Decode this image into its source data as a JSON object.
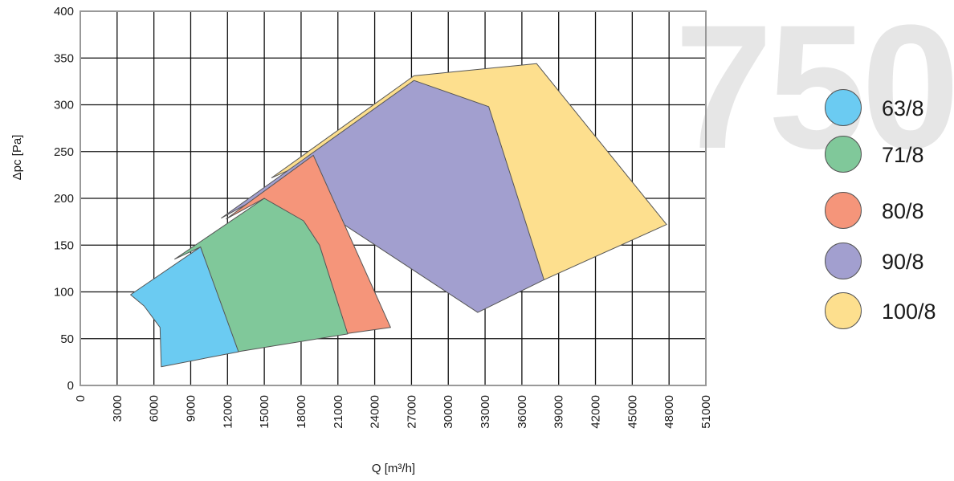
{
  "chart_data": {
    "type": "area",
    "watermark": "750",
    "xlabel": "Q [m³/h]",
    "ylabel": "Δpc [Pa]",
    "xlim": [
      0,
      51000
    ],
    "ylim": [
      0,
      400
    ],
    "x_ticks": [
      "0",
      "3000",
      "6000",
      "9000",
      "12000",
      "15000",
      "18000",
      "21000",
      "24000",
      "27000",
      "30000",
      "33000",
      "36000",
      "39000",
      "42000",
      "45000",
      "48000",
      "51000"
    ],
    "y_ticks": [
      "0",
      "50",
      "100",
      "150",
      "200",
      "250",
      "300",
      "350",
      "400"
    ],
    "grid": true,
    "legend_position": "right",
    "series": [
      {
        "name": "100/8",
        "color": "#fddf8e",
        "points": [
          [
            15600,
            222
          ],
          [
            27200,
            331
          ],
          [
            37200,
            344
          ],
          [
            47800,
            172
          ],
          [
            37800,
            113
          ],
          [
            23000,
            265
          ]
        ]
      },
      {
        "name": "90/8",
        "color": "#a29fcf",
        "points": [
          [
            11500,
            179
          ],
          [
            27200,
            326
          ],
          [
            33300,
            298
          ],
          [
            37800,
            113
          ],
          [
            32400,
            78
          ],
          [
            16500,
            215
          ]
        ]
      },
      {
        "name": "80/8",
        "color": "#f5957a",
        "points": [
          [
            11900,
            178
          ],
          [
            19000,
            246
          ],
          [
            25300,
            62
          ],
          [
            21500,
            55
          ],
          [
            15000,
            200
          ]
        ]
      },
      {
        "name": "71/8",
        "color": "#80c89a",
        "points": [
          [
            7700,
            135
          ],
          [
            15000,
            200
          ],
          [
            18200,
            176
          ],
          [
            19500,
            150
          ],
          [
            21800,
            55
          ],
          [
            12800,
            36
          ],
          [
            9800,
            148
          ]
        ]
      },
      {
        "name": "63/8",
        "color": "#6bcbf2",
        "points": [
          [
            4100,
            97
          ],
          [
            9800,
            148
          ],
          [
            12900,
            36
          ],
          [
            6600,
            20
          ],
          [
            6500,
            62
          ],
          [
            5200,
            85
          ]
        ]
      }
    ],
    "legend": [
      "63/8",
      "71/8",
      "80/8",
      "90/8",
      "100/8"
    ],
    "legend_colors": [
      "#6bcbf2",
      "#80c89a",
      "#f5957a",
      "#a29fcf",
      "#fddf8e"
    ]
  }
}
